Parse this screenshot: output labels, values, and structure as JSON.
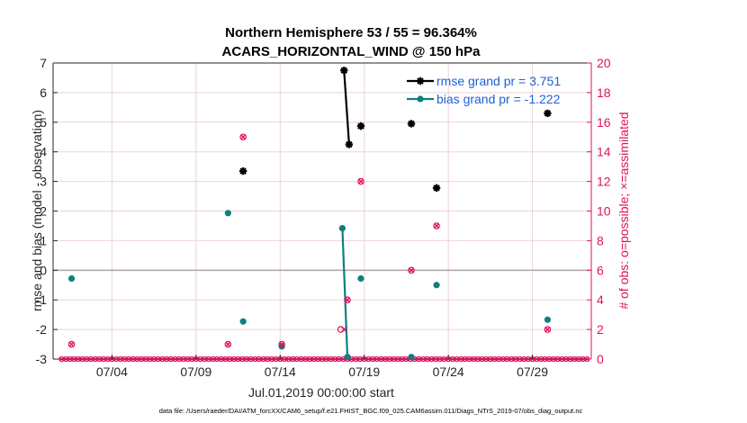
{
  "figure": {
    "title_line1": "Northern Hemisphere 53 / 55 = 96.364%",
    "title_line2": "ACARS_HORIZONTAL_WIND @ 150 hPa",
    "xlabel": "Jul.01,2019 00:00:00 start",
    "ylabel_left": "rmse and bias (model - observation)",
    "ylabel_right": "# of obs: o=possible; ×=assimilated",
    "footer": "data file: /Users/raeder/DAI/ATM_forcXX/CAM6_setup/f.e21.FHIST_BGC.f09_025.CAM6assim.011/Diags_NTrS_2019-07/obs_diag_output.nc"
  },
  "chart_data": {
    "type": "line",
    "x_ticks": [
      4,
      9,
      14,
      19,
      24,
      29
    ],
    "x_tick_labels": [
      "07/04",
      "07/09",
      "07/14",
      "07/19",
      "07/24",
      "07/29"
    ],
    "xlim": [
      0.5,
      32.5
    ],
    "ylim_left": [
      -3,
      7
    ],
    "yticks_left": [
      "-3",
      "-2",
      "-1",
      "0",
      "1",
      "2",
      "3",
      "4",
      "5",
      "6",
      "7"
    ],
    "ylim_right": [
      0,
      20
    ],
    "yticks_right": [
      "0",
      "2",
      "4",
      "6",
      "8",
      "10",
      "12",
      "14",
      "16",
      "18",
      "20"
    ],
    "zero_line": 0,
    "grid": true,
    "legend_position": "top-right",
    "series": [
      {
        "name": "rmse grand pr = 3.751",
        "axis": "left",
        "color": "#000000",
        "marker": "asterisk",
        "points": [
          [
            11.8,
            3.35
          ],
          [
            17.8,
            6.75
          ],
          [
            18.1,
            4.25
          ],
          [
            18.8,
            4.87
          ],
          [
            21.8,
            4.95
          ],
          [
            23.3,
            2.78
          ],
          [
            29.9,
            5.3
          ]
        ],
        "connected": [
          [
            [
              17.8,
              6.75
            ],
            [
              18.1,
              4.25
            ]
          ]
        ]
      },
      {
        "name": "bias grand pr = -1.222",
        "axis": "left",
        "color": "#0e7f7f",
        "marker": "dot",
        "points": [
          [
            1.6,
            -0.28
          ],
          [
            10.9,
            1.93
          ],
          [
            11.8,
            -1.73
          ],
          [
            14.1,
            -2.57
          ],
          [
            17.7,
            1.42
          ],
          [
            18.0,
            -2.93
          ],
          [
            18.8,
            -0.28
          ],
          [
            21.8,
            -2.93
          ],
          [
            23.3,
            -0.5
          ],
          [
            29.9,
            -1.67
          ]
        ],
        "connected": [
          [
            [
              17.7,
              1.42
            ],
            [
              18.0,
              -2.93
            ]
          ]
        ]
      },
      {
        "name": "obs possible",
        "axis": "right",
        "color": "#e0115f",
        "marker": "circle",
        "points": [
          [
            1.6,
            1
          ],
          [
            10.9,
            1
          ],
          [
            11.8,
            15
          ],
          [
            14.1,
            1
          ],
          [
            17.6,
            2
          ],
          [
            18.0,
            4
          ],
          [
            18.8,
            12
          ],
          [
            21.8,
            6
          ],
          [
            23.3,
            9
          ],
          [
            29.9,
            2
          ]
        ]
      },
      {
        "name": "obs assimilated",
        "axis": "right",
        "color": "#e0115f",
        "marker": "x",
        "points": [
          [
            1.6,
            1
          ],
          [
            10.9,
            1
          ],
          [
            11.8,
            15
          ],
          [
            14.1,
            1
          ],
          [
            17.8,
            2
          ],
          [
            18.0,
            4
          ],
          [
            18.8,
            12
          ],
          [
            21.8,
            6
          ],
          [
            23.3,
            9
          ],
          [
            29.9,
            2
          ]
        ]
      }
    ]
  }
}
